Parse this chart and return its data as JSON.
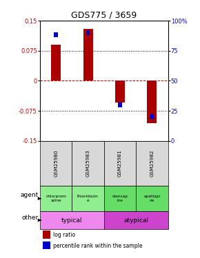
{
  "title": "GDS775 / 3659",
  "samples": [
    "GSM25980",
    "GSM25983",
    "GSM25981",
    "GSM25982"
  ],
  "log_ratio": [
    0.09,
    0.13,
    -0.055,
    -0.105
  ],
  "pct_rank_pct": [
    88,
    90,
    30,
    20
  ],
  "ylim_left": [
    -0.15,
    0.15
  ],
  "ylim_right": [
    0,
    100
  ],
  "yticks_left": [
    -0.15,
    -0.075,
    0,
    0.075,
    0.15
  ],
  "yticks_right": [
    0,
    25,
    50,
    75,
    100
  ],
  "bar_color": "#aa0000",
  "dot_color": "#0000cc",
  "agent_labels": [
    "chlorprom\nazine",
    "thioridazin\ne",
    "olanzap\nine",
    "quetiapi\nne"
  ],
  "agent_colors_left": [
    "#90ee90",
    "#90ee90"
  ],
  "agent_colors_right": [
    "#66dd66",
    "#66dd66"
  ],
  "other_labels": [
    "typical",
    "atypical"
  ],
  "other_color_left": "#ee88ee",
  "other_color_right": "#cc44cc",
  "legend_red": "log ratio",
  "legend_blue": "percentile rank within the sample",
  "sample_bg": "#d8d8d8"
}
